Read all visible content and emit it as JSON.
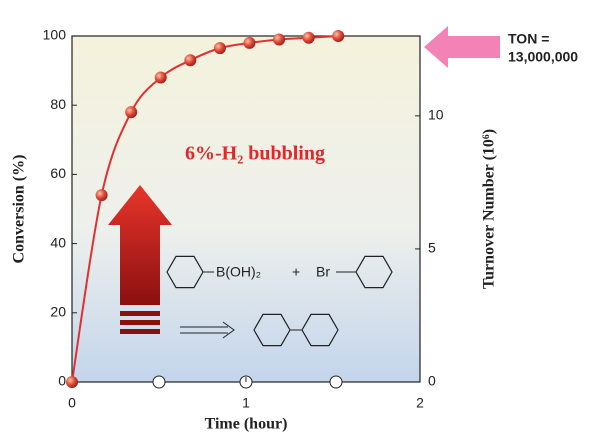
{
  "chart_data": {
    "type": "line",
    "x": [
      0,
      0.17,
      0.34,
      0.51,
      0.68,
      0.85,
      1.02,
      1.19,
      1.36,
      1.53
    ],
    "values": [
      0,
      54,
      78,
      88,
      93,
      96.5,
      98,
      99,
      99.5,
      100
    ],
    "color": "#e03030",
    "xlim": [
      0,
      2
    ],
    "xticks": [
      0,
      1,
      2
    ],
    "ylim": [
      0,
      100
    ],
    "yticks": [
      0,
      20,
      40,
      60,
      80,
      100
    ],
    "y2lim": [
      0,
      13
    ],
    "y2ticks": [
      0,
      5,
      10
    ],
    "grid": false,
    "x_label": "Time (hour)",
    "y_label": "Conversion (%)",
    "y2_label": "Turnover Number (10⁶)",
    "annotation": "6%-H₂ bubbling",
    "ton_label": [
      "TON =",
      "13,000,000"
    ],
    "scheme": {
      "reagent1": "B(OH)₂",
      "plus": "+",
      "reagent2": "Br"
    }
  }
}
